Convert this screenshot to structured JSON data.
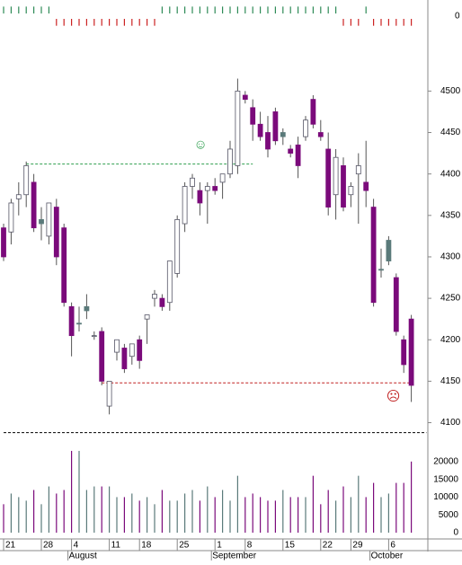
{
  "chart_data": {
    "type": "candlestick",
    "categories": [
      "21",
      null,
      null,
      null,
      null,
      "28",
      null,
      null,
      null,
      "4",
      null,
      null,
      null,
      null,
      "11",
      null,
      null,
      null,
      "18",
      null,
      null,
      null,
      null,
      "25",
      null,
      null,
      null,
      null,
      "1",
      null,
      null,
      null,
      "8",
      null,
      null,
      null,
      null,
      "15",
      null,
      null,
      null,
      null,
      "22",
      null,
      null,
      null,
      "29",
      null,
      null,
      null,
      null,
      "6",
      null,
      null,
      null
    ],
    "months": [
      null,
      null,
      null,
      null,
      null,
      null,
      null,
      null,
      null,
      "August",
      null,
      null,
      null,
      null,
      null,
      null,
      null,
      null,
      null,
      null,
      null,
      null,
      null,
      null,
      null,
      null,
      null,
      null,
      "September",
      null,
      null,
      null,
      null,
      null,
      null,
      null,
      null,
      null,
      null,
      null,
      null,
      null,
      null,
      null,
      null,
      null,
      null,
      null,
      null,
      "October",
      null,
      null,
      null,
      null,
      null
    ],
    "open": [
      4335,
      4330,
      4370,
      4375,
      4390,
      4345,
      4325,
      4360,
      4335,
      4240,
      4220,
      4235,
      4205,
      4210,
      4120,
      4185,
      4190,
      4180,
      4200,
      4225,
      4250,
      4250,
      4245,
      4280,
      4340,
      4385,
      4380,
      4380,
      4385,
      4390,
      4400,
      4410,
      4495,
      4480,
      4460,
      4450,
      4475,
      4445,
      4430,
      4435,
      4445,
      4490,
      4450,
      4430,
      4375,
      4410,
      4375,
      4400,
      4390,
      4360,
      4285,
      4320,
      4275,
      4200,
      4225
    ],
    "high": [
      4340,
      4370,
      4390,
      4415,
      4400,
      4360,
      4365,
      4370,
      4340,
      4245,
      4240,
      4255,
      4210,
      4215,
      4150,
      4200,
      4195,
      4195,
      4205,
      4230,
      4260,
      4255,
      4295,
      4350,
      4390,
      4400,
      4390,
      4390,
      4395,
      4400,
      4440,
      4515,
      4500,
      4490,
      4475,
      4470,
      4480,
      4455,
      4435,
      4445,
      4470,
      4495,
      4465,
      4450,
      4430,
      4420,
      4390,
      4425,
      4440,
      4370,
      4310,
      4325,
      4280,
      4205,
      4230
    ],
    "low": [
      4295,
      4315,
      4350,
      4360,
      4330,
      4320,
      4315,
      4290,
      4240,
      4180,
      4210,
      4225,
      4200,
      4145,
      4110,
      4175,
      4160,
      4170,
      4165,
      4195,
      4240,
      4235,
      4235,
      4275,
      4330,
      4370,
      4350,
      4340,
      4375,
      4370,
      4395,
      4400,
      4485,
      4440,
      4440,
      4420,
      4435,
      4435,
      4420,
      4395,
      4440,
      4455,
      4440,
      4350,
      4345,
      4355,
      4360,
      4340,
      4360,
      4240,
      4275,
      4290,
      4205,
      4160,
      4125
    ],
    "close": [
      4300,
      4365,
      4375,
      4410,
      4335,
      4340,
      4365,
      4300,
      4245,
      4205,
      4220,
      4240,
      4205,
      4150,
      4150,
      4200,
      4165,
      4195,
      4175,
      4230,
      4255,
      4240,
      4295,
      4345,
      4385,
      4395,
      4365,
      4385,
      4380,
      4400,
      4430,
      4500,
      4490,
      4460,
      4445,
      4430,
      4440,
      4450,
      4425,
      4410,
      4465,
      4460,
      4445,
      4360,
      4420,
      4360,
      4385,
      4410,
      4380,
      4245,
      4285,
      4295,
      4210,
      4170,
      4145
    ],
    "body_colors": [
      "#7b0a7b",
      "#ffffff",
      "#ffffff",
      "#ffffff",
      "#7b0a7b",
      "#5a7a7a",
      "#ffffff",
      "#7b0a7b",
      "#7b0a7b",
      "#7b0a7b",
      "#5a7a7a",
      "#5a7a7a",
      "#ffffff",
      "#7b0a7b",
      "#ffffff",
      "#ffffff",
      "#7b0a7b",
      "#ffffff",
      "#7b0a7b",
      "#ffffff",
      "#ffffff",
      "#7b0a7b",
      "#ffffff",
      "#ffffff",
      "#ffffff",
      "#ffffff",
      "#7b0a7b",
      "#ffffff",
      "#7b0a7b",
      "#ffffff",
      "#ffffff",
      "#ffffff",
      "#7b0a7b",
      "#7b0a7b",
      "#7b0a7b",
      "#7b0a7b",
      "#7b0a7b",
      "#5a7a7a",
      "#7b0a7b",
      "#7b0a7b",
      "#ffffff",
      "#7b0a7b",
      "#7b0a7b",
      "#7b0a7b",
      "#ffffff",
      "#7b0a7b",
      "#ffffff",
      "#ffffff",
      "#7b0a7b",
      "#7b0a7b",
      "#5a7a7a",
      "#5a7a7a",
      "#7b0a7b",
      "#7b0a7b",
      "#7b0a7b"
    ],
    "ylim": [
      4080,
      4560
    ],
    "yticks": [
      4100,
      4150,
      4200,
      4250,
      4300,
      4350,
      4400,
      4450,
      4500
    ],
    "reference_lines": [
      {
        "value": 4412,
        "color": "#2e9e4e",
        "start": 3,
        "end": 33,
        "marker": "☺"
      },
      {
        "value": 4148,
        "color": "#c02020",
        "start": 13,
        "end": 54,
        "marker": "☹"
      },
      {
        "value": 4088,
        "color": "#000000",
        "start": 0,
        "end": 56
      }
    ],
    "indicator": {
      "values": [
        1,
        1,
        1,
        1,
        1,
        1,
        1,
        -1,
        -1,
        -1,
        -1,
        -1,
        -1,
        -1,
        -1,
        -1,
        -1,
        -1,
        -1,
        -1,
        -1,
        1,
        1,
        1,
        1,
        1,
        1,
        1,
        1,
        1,
        1,
        1,
        1,
        1,
        1,
        1,
        1,
        1,
        1,
        1,
        1,
        1,
        1,
        1,
        1,
        -1,
        -1,
        -1,
        1,
        -1,
        -1,
        -1,
        -1,
        -1,
        -1
      ],
      "ylim": [
        -1.5,
        1.5
      ],
      "yticks": [
        0
      ],
      "up_color": "#2e8b57",
      "down_color": "#cc2222"
    },
    "volume": {
      "values": [
        8000,
        11000,
        10000,
        9000,
        12000,
        8000,
        13000,
        11000,
        12000,
        23000,
        23000,
        12000,
        13000,
        13000,
        13000,
        10000,
        10000,
        11000,
        9000,
        10000,
        8000,
        12000,
        9000,
        9000,
        11000,
        12000,
        9000,
        13000,
        10000,
        12000,
        9000,
        16000,
        10000,
        11000,
        10000,
        9000,
        9000,
        12000,
        10000,
        10000,
        10000,
        16000,
        8000,
        12000,
        9000,
        13000,
        10000,
        16000,
        10000,
        14000,
        10000,
        11000,
        14000,
        14000,
        20000
      ],
      "ylim": [
        0,
        24000
      ],
      "yticks": [
        0,
        5000,
        10000,
        15000,
        20000
      ]
    }
  }
}
